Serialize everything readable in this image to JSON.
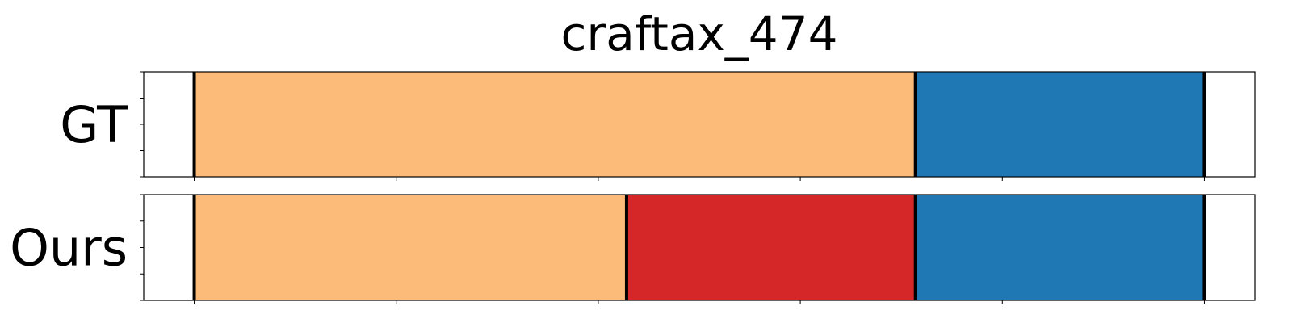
{
  "chart_data": {
    "type": "bar",
    "title": "craftax_474",
    "xlim": [
      -0.05,
      1.05
    ],
    "boundary_color": "#000000",
    "rows": [
      {
        "label": "GT",
        "segments": [
          {
            "start": 0.0,
            "end": 0.714,
            "color": "#fdbb79"
          },
          {
            "start": 0.714,
            "end": 1.0,
            "color": "#1f77b4"
          }
        ],
        "boundaries": [
          0.0,
          0.714,
          1.0
        ]
      },
      {
        "label": "Ours",
        "segments": [
          {
            "start": 0.0,
            "end": 0.428,
            "color": "#fdbb79"
          },
          {
            "start": 0.428,
            "end": 0.714,
            "color": "#d62728"
          },
          {
            "start": 0.714,
            "end": 1.0,
            "color": "#1f77b4"
          }
        ],
        "boundaries": [
          0.0,
          0.428,
          0.714,
          1.0
        ]
      }
    ],
    "x_ticks": [
      0.0,
      0.2,
      0.4,
      0.6,
      0.8,
      1.0
    ],
    "y_ticks_per_row": 5,
    "x_tick_labels_shown": false,
    "y_tick_labels_shown": false
  }
}
